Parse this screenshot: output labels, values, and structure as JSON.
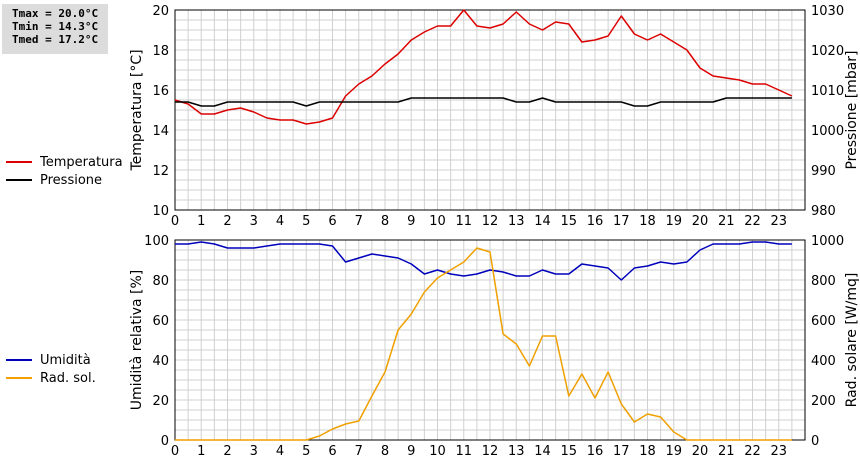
{
  "stats": {
    "tmax": "Tmax = 20.0°C",
    "tmin": "Tmin = 14.3°C",
    "tmed": "Tmed = 17.2°C"
  },
  "colors": {
    "temperature": "#dd0000",
    "pressure": "#000000",
    "humidity": "#0000bb",
    "radiation": "#f0a000",
    "grid": "#d0d0d0"
  },
  "chart_data": [
    {
      "type": "line",
      "x_ticks": [
        "0",
        "1",
        "2",
        "3",
        "4",
        "5",
        "6",
        "7",
        "8",
        "9",
        "10",
        "11",
        "12",
        "13",
        "14",
        "15",
        "16",
        "17",
        "18",
        "19",
        "20",
        "21",
        "22",
        "23"
      ],
      "xlim": [
        0,
        24
      ],
      "ylabel_left": "Temperatura [°C]",
      "ylabel_right": "Pressione [mbar]",
      "ylim_left": [
        10,
        20
      ],
      "yticks_left": [
        "10",
        "12",
        "14",
        "16",
        "18",
        "20"
      ],
      "ylim_right": [
        980,
        1030
      ],
      "yticks_right": [
        "980",
        "990",
        "1000",
        "1010",
        "1020",
        "1030"
      ],
      "legend": [
        "Temperatura",
        "Pressione"
      ],
      "grid": true,
      "series": [
        {
          "name": "Temperatura",
          "axis": "left",
          "x": [
            0,
            0.5,
            1,
            1.5,
            2,
            2.5,
            3,
            3.5,
            4,
            4.5,
            5,
            5.5,
            6,
            6.5,
            7,
            7.5,
            8,
            8.5,
            9,
            9.5,
            10,
            10.5,
            11,
            11.5,
            12,
            12.5,
            13,
            13.5,
            14,
            14.5,
            15,
            15.5,
            16,
            16.5,
            17,
            17.5,
            18,
            18.5,
            19,
            19.5,
            20,
            20.5,
            21,
            21.5,
            22,
            22.5,
            23,
            23.5
          ],
          "values": [
            15.5,
            15.3,
            14.8,
            14.8,
            15.0,
            15.1,
            14.9,
            14.6,
            14.5,
            14.5,
            14.3,
            14.4,
            14.6,
            15.7,
            16.3,
            16.7,
            17.3,
            17.8,
            18.5,
            18.9,
            19.2,
            19.2,
            20.0,
            19.2,
            19.1,
            19.3,
            19.9,
            19.3,
            19.0,
            19.4,
            19.3,
            18.4,
            18.5,
            18.7,
            19.7,
            18.8,
            18.5,
            18.8,
            18.4,
            18.0,
            17.1,
            16.7,
            16.6,
            16.5,
            16.3,
            16.3,
            16.0,
            15.7
          ]
        },
        {
          "name": "Pressione",
          "axis": "right",
          "x": [
            0,
            0.5,
            1,
            1.5,
            2,
            2.5,
            3,
            3.5,
            4,
            4.5,
            5,
            5.5,
            6,
            6.5,
            7,
            7.5,
            8,
            8.5,
            9,
            9.5,
            10,
            10.5,
            11,
            11.5,
            12,
            12.5,
            13,
            13.5,
            14,
            14.5,
            15,
            15.5,
            16,
            16.5,
            17,
            17.5,
            18,
            18.5,
            19,
            19.5,
            20,
            20.5,
            21,
            21.5,
            22,
            22.5,
            23,
            23.5
          ],
          "values": [
            1007,
            1007,
            1006,
            1006,
            1007,
            1007,
            1007,
            1007,
            1007,
            1007,
            1006,
            1007,
            1007,
            1007,
            1007,
            1007,
            1007,
            1007,
            1008,
            1008,
            1008,
            1008,
            1008,
            1008,
            1008,
            1008,
            1007,
            1007,
            1008,
            1007,
            1007,
            1007,
            1007,
            1007,
            1007,
            1006,
            1006,
            1007,
            1007,
            1007,
            1007,
            1007,
            1008,
            1008,
            1008,
            1008,
            1008,
            1008
          ]
        }
      ]
    },
    {
      "type": "line",
      "x_ticks": [
        "0",
        "1",
        "2",
        "3",
        "4",
        "5",
        "6",
        "7",
        "8",
        "9",
        "10",
        "11",
        "12",
        "13",
        "14",
        "15",
        "16",
        "17",
        "18",
        "19",
        "20",
        "21",
        "22",
        "23"
      ],
      "xlim": [
        0,
        24
      ],
      "ylabel_left": "Umidità relativa [%]",
      "ylabel_right": "Rad. solare [W/mq]",
      "ylim_left": [
        0,
        100
      ],
      "yticks_left": [
        "0",
        "20",
        "40",
        "60",
        "80",
        "100"
      ],
      "ylim_right": [
        0,
        1000
      ],
      "yticks_right": [
        "0",
        "200",
        "400",
        "600",
        "800",
        "1000"
      ],
      "legend": [
        "Umidità",
        "Rad. sol."
      ],
      "grid": true,
      "series": [
        {
          "name": "Umidità",
          "axis": "left",
          "x": [
            0,
            0.5,
            1,
            1.5,
            2,
            2.5,
            3,
            3.5,
            4,
            4.5,
            5,
            5.5,
            6,
            6.5,
            7,
            7.5,
            8,
            8.5,
            9,
            9.5,
            10,
            10.5,
            11,
            11.5,
            12,
            12.5,
            13,
            13.5,
            14,
            14.5,
            15,
            15.5,
            16,
            16.5,
            17,
            17.5,
            18,
            18.5,
            19,
            19.5,
            20,
            20.5,
            21,
            21.5,
            22,
            22.5,
            23,
            23.5
          ],
          "values": [
            98,
            98,
            99,
            98,
            96,
            96,
            96,
            97,
            98,
            98,
            98,
            98,
            97,
            89,
            91,
            93,
            92,
            91,
            88,
            83,
            85,
            83,
            82,
            83,
            85,
            84,
            82,
            82,
            85,
            83,
            83,
            88,
            87,
            86,
            80,
            86,
            87,
            89,
            88,
            89,
            95,
            98,
            98,
            98,
            99,
            99,
            98,
            98
          ]
        },
        {
          "name": "Rad. sol.",
          "axis": "right",
          "x": [
            0,
            0.5,
            1,
            1.5,
            2,
            2.5,
            3,
            3.5,
            4,
            4.5,
            5,
            5.5,
            6,
            6.5,
            7,
            7.5,
            8,
            8.5,
            9,
            9.5,
            10,
            10.5,
            11,
            11.5,
            12,
            12.5,
            13,
            13.5,
            14,
            14.5,
            15,
            15.5,
            16,
            16.5,
            17,
            17.5,
            18,
            18.5,
            19,
            19.5,
            20,
            20.5,
            21,
            21.5,
            22,
            22.5,
            23,
            23.5
          ],
          "values": [
            0,
            0,
            0,
            0,
            0,
            0,
            0,
            0,
            0,
            0,
            0,
            20,
            55,
            80,
            95,
            220,
            340,
            550,
            630,
            740,
            810,
            850,
            890,
            960,
            940,
            530,
            480,
            370,
            520,
            520,
            220,
            330,
            210,
            340,
            180,
            90,
            130,
            115,
            40,
            0,
            0,
            0,
            0,
            0,
            0,
            0,
            0,
            0
          ]
        }
      ]
    }
  ]
}
